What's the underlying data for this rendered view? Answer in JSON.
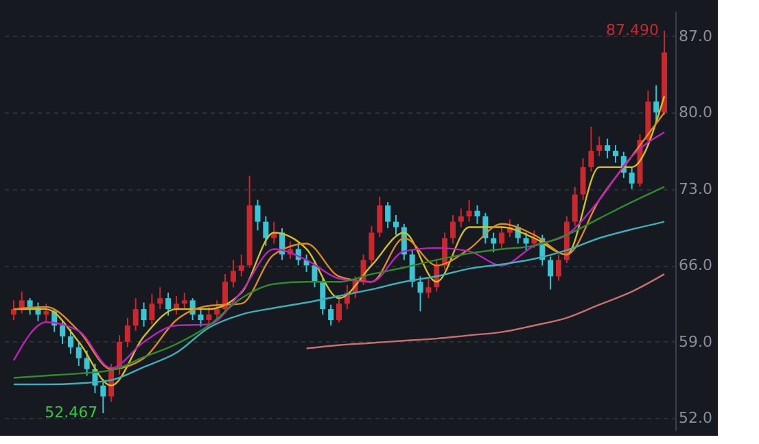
{
  "chart_data": {
    "type": "candlestick",
    "categories": [
      null,
      null,
      null,
      null,
      null,
      null,
      null,
      null,
      null,
      null,
      null,
      null,
      null,
      null,
      null,
      null,
      null,
      null,
      null,
      null,
      null,
      null,
      null,
      null,
      null,
      null,
      null,
      null,
      null,
      null,
      null,
      null,
      null,
      null,
      null,
      null,
      null,
      null,
      null,
      null,
      null,
      null,
      null,
      null,
      null,
      null,
      null,
      null,
      null,
      null,
      null,
      null,
      null,
      null,
      null,
      null,
      null,
      null,
      null,
      null,
      null,
      null,
      null,
      null,
      null,
      null,
      null,
      null,
      null,
      null,
      null,
      null,
      null,
      null,
      null,
      null,
      null,
      null,
      null,
      null,
      null
    ],
    "ohlc": [
      [
        61.5,
        62.8,
        61.0,
        62.0
      ],
      [
        62.0,
        63.6,
        61.6,
        62.8
      ],
      [
        62.8,
        63.0,
        61.5,
        62.2
      ],
      [
        62.2,
        62.6,
        60.9,
        61.5
      ],
      [
        61.5,
        62.5,
        60.8,
        61.8
      ],
      [
        61.8,
        62.0,
        59.9,
        60.5
      ],
      [
        60.5,
        61.0,
        58.8,
        59.5
      ],
      [
        59.5,
        60.2,
        57.9,
        58.5
      ],
      [
        58.5,
        59.0,
        56.8,
        57.5
      ],
      [
        57.5,
        58.2,
        55.9,
        56.5
      ],
      [
        56.5,
        57.0,
        54.3,
        55.0
      ],
      [
        55.0,
        55.6,
        52.467,
        54.0
      ],
      [
        54.0,
        57.0,
        53.5,
        56.5
      ],
      [
        56.5,
        59.6,
        56.0,
        59.0
      ],
      [
        59.0,
        61.2,
        58.5,
        60.5
      ],
      [
        60.5,
        63.0,
        60.0,
        62.0
      ],
      [
        62.0,
        62.6,
        60.4,
        61.0
      ],
      [
        61.0,
        63.4,
        60.6,
        62.5
      ],
      [
        62.5,
        64.0,
        62.0,
        63.0
      ],
      [
        63.0,
        63.5,
        61.4,
        62.0
      ],
      [
        62.0,
        63.2,
        61.5,
        62.5
      ],
      [
        62.5,
        63.5,
        62.0,
        62.8
      ],
      [
        62.8,
        63.0,
        61.0,
        61.5
      ],
      [
        61.5,
        62.0,
        60.4,
        61.0
      ],
      [
        61.0,
        62.2,
        60.6,
        61.5
      ],
      [
        61.5,
        62.8,
        61.0,
        62.0
      ],
      [
        62.0,
        65.2,
        61.6,
        64.5
      ],
      [
        64.5,
        66.5,
        64.0,
        65.5
      ],
      [
        65.5,
        67.0,
        65.0,
        66.0
      ],
      [
        66.0,
        74.2,
        65.8,
        71.5
      ],
      [
        71.5,
        72.0,
        69.2,
        70.0
      ],
      [
        70.0,
        70.5,
        67.8,
        68.5
      ],
      [
        68.5,
        70.0,
        68.0,
        69.0
      ],
      [
        69.0,
        69.4,
        66.5,
        67.0
      ],
      [
        67.0,
        68.2,
        66.6,
        67.5
      ],
      [
        67.5,
        68.0,
        66.0,
        66.5
      ],
      [
        66.5,
        67.0,
        65.4,
        66.0
      ],
      [
        66.0,
        66.4,
        64.0,
        64.5
      ],
      [
        64.5,
        64.8,
        61.5,
        62.0
      ],
      [
        62.0,
        62.4,
        60.5,
        61.0
      ],
      [
        61.0,
        63.0,
        60.8,
        62.5
      ],
      [
        62.5,
        64.2,
        62.0,
        63.5
      ],
      [
        63.5,
        65.0,
        63.0,
        64.5
      ],
      [
        64.5,
        67.0,
        64.2,
        66.5
      ],
      [
        66.5,
        69.6,
        66.0,
        69.0
      ],
      [
        69.0,
        72.3,
        68.6,
        71.5
      ],
      [
        71.5,
        71.8,
        69.4,
        70.0
      ],
      [
        70.0,
        70.6,
        68.8,
        69.5
      ],
      [
        69.5,
        69.8,
        66.5,
        67.0
      ],
      [
        67.0,
        67.4,
        64.0,
        64.5
      ],
      [
        64.5,
        65.0,
        61.8,
        63.5
      ],
      [
        63.5,
        64.8,
        63.0,
        64.0
      ],
      [
        64.0,
        66.6,
        63.6,
        66.0
      ],
      [
        66.0,
        69.0,
        65.6,
        68.5
      ],
      [
        68.5,
        70.6,
        68.0,
        70.0
      ],
      [
        70.0,
        71.2,
        69.5,
        70.5
      ],
      [
        70.5,
        72.0,
        70.0,
        71.0
      ],
      [
        71.0,
        71.5,
        69.8,
        70.5
      ],
      [
        70.5,
        70.8,
        68.0,
        68.5
      ],
      [
        68.5,
        69.0,
        67.2,
        68.0
      ],
      [
        68.0,
        69.6,
        67.6,
        69.0
      ],
      [
        69.0,
        70.2,
        68.6,
        69.5
      ],
      [
        69.5,
        69.8,
        68.0,
        68.5
      ],
      [
        68.5,
        69.0,
        67.4,
        68.0
      ],
      [
        68.0,
        69.2,
        67.6,
        68.5
      ],
      [
        68.5,
        68.8,
        66.0,
        66.5
      ],
      [
        66.5,
        66.8,
        63.8,
        65.0
      ],
      [
        65.0,
        67.0,
        64.6,
        66.5
      ],
      [
        66.5,
        70.5,
        66.2,
        70.0
      ],
      [
        70.0,
        73.2,
        69.6,
        72.5
      ],
      [
        72.5,
        75.8,
        72.0,
        75.0
      ],
      [
        75.0,
        78.7,
        74.6,
        76.5
      ],
      [
        76.5,
        77.8,
        76.0,
        77.0
      ],
      [
        77.0,
        77.6,
        75.8,
        76.5
      ],
      [
        76.5,
        77.0,
        75.4,
        76.0
      ],
      [
        76.0,
        76.4,
        74.0,
        74.5
      ],
      [
        74.5,
        75.0,
        73.0,
        73.5
      ],
      [
        73.5,
        78.0,
        73.2,
        77.5
      ],
      [
        77.5,
        82.0,
        77.0,
        81.0
      ],
      [
        81.0,
        82.5,
        79.0,
        80.0
      ],
      [
        80.0,
        87.49,
        79.8,
        85.5
      ]
    ],
    "colors": [
      "#c8282e",
      "#c8282e",
      "#38c6d6",
      "#38c6d6",
      "#c8282e",
      "#38c6d6",
      "#38c6d6",
      "#38c6d6",
      "#38c6d6",
      "#38c6d6",
      "#38c6d6",
      "#38c6d6",
      "#c8282e",
      "#c8282e",
      "#c8282e",
      "#c8282e",
      "#38c6d6",
      "#c8282e",
      "#c8282e",
      "#38c6d6",
      "#c8282e",
      "#c8282e",
      "#38c6d6",
      "#38c6d6",
      "#c8282e",
      "#c8282e",
      "#c8282e",
      "#c8282e",
      "#c8282e",
      "#c8282e",
      "#38c6d6",
      "#38c6d6",
      "#c8282e",
      "#38c6d6",
      "#c8282e",
      "#38c6d6",
      "#38c6d6",
      "#38c6d6",
      "#38c6d6",
      "#38c6d6",
      "#c8282e",
      "#c8282e",
      "#c8282e",
      "#c8282e",
      "#c8282e",
      "#c8282e",
      "#38c6d6",
      "#38c6d6",
      "#38c6d6",
      "#38c6d6",
      "#38c6d6",
      "#c8282e",
      "#c8282e",
      "#c8282e",
      "#c8282e",
      "#c8282e",
      "#c8282e",
      "#38c6d6",
      "#38c6d6",
      "#38c6d6",
      "#c8282e",
      "#c8282e",
      "#38c6d6",
      "#38c6d6",
      "#c8282e",
      "#38c6d6",
      "#38c6d6",
      "#c8282e",
      "#c8282e",
      "#c8282e",
      "#c8282e",
      "#c8282e",
      "#c8282e",
      "#38c6d6",
      "#38c6d6",
      "#38c6d6",
      "#38c6d6",
      "#c8282e",
      "#c8282e",
      "#38c6d6",
      "#c8282e"
    ],
    "series": [
      {
        "type": "line",
        "color": "#d4c21a",
        "values": [
          62.0,
          null,
          null,
          null,
          62.0,
          null,
          null,
          null,
          59.0,
          null,
          null,
          null,
          55.0,
          null,
          null,
          null,
          59.5,
          null,
          null,
          null,
          62.0,
          null,
          null,
          null,
          62.0,
          null,
          null,
          null,
          63.5,
          null,
          null,
          null,
          69.0,
          null,
          null,
          null,
          67.5,
          null,
          null,
          null,
          63.0,
          null,
          null,
          null,
          66.0,
          null,
          null,
          null,
          69.0,
          null,
          null,
          null,
          64.5,
          null,
          null,
          null,
          69.5,
          null,
          null,
          null,
          69.5,
          null,
          null,
          null,
          68.5,
          null,
          null,
          null,
          67.0,
          null,
          null,
          null,
          75.0,
          null,
          null,
          null,
          75.0,
          null,
          null,
          null,
          81.5
        ]
      },
      {
        "type": "line",
        "color": "#e08a1e",
        "values": [
          62.0,
          null,
          null,
          null,
          62.2,
          null,
          null,
          null,
          60.0,
          null,
          null,
          null,
          56.5,
          null,
          null,
          null,
          57.5,
          null,
          null,
          null,
          61.0,
          null,
          null,
          null,
          62.3,
          null,
          null,
          null,
          62.5,
          null,
          null,
          null,
          67.0,
          null,
          null,
          null,
          68.0,
          null,
          null,
          null,
          65.0,
          null,
          null,
          null,
          64.5,
          null,
          null,
          null,
          68.5,
          null,
          null,
          null,
          66.0,
          null,
          null,
          null,
          67.5,
          null,
          null,
          null,
          69.8,
          null,
          null,
          null,
          68.8,
          null,
          null,
          null,
          67.0,
          null,
          null,
          null,
          72.0,
          null,
          null,
          null,
          76.0,
          null,
          null,
          null,
          80.0
        ]
      },
      {
        "type": "line",
        "color": "#c020c0",
        "values": [
          57.3,
          null,
          null,
          null,
          60.8,
          null,
          null,
          null,
          60.0,
          null,
          null,
          null,
          56.6,
          null,
          null,
          null,
          59.0,
          null,
          null,
          null,
          60.5,
          null,
          null,
          null,
          60.6,
          null,
          null,
          null,
          63.6,
          null,
          null,
          null,
          67.5,
          null,
          null,
          null,
          66.5,
          null,
          null,
          null,
          64.8,
          null,
          null,
          null,
          64.5,
          null,
          null,
          null,
          67.3,
          null,
          null,
          null,
          67.6,
          null,
          null,
          null,
          67.3,
          null,
          null,
          null,
          66.0,
          null,
          null,
          null,
          67.8,
          null,
          null,
          null,
          68.8,
          null,
          null,
          null,
          72.0,
          null,
          null,
          null,
          76.0,
          null,
          null,
          null,
          78.2
        ]
      },
      {
        "type": "line",
        "color": "#2e8b2e",
        "values": [
          55.7,
          null,
          null,
          null,
          55.9,
          null,
          null,
          null,
          56.1,
          null,
          null,
          null,
          56.4,
          null,
          null,
          null,
          57.6,
          null,
          null,
          null,
          58.8,
          null,
          null,
          null,
          60.5,
          null,
          null,
          null,
          63.0,
          null,
          null,
          null,
          64.3,
          null,
          null,
          null,
          64.5,
          null,
          null,
          null,
          64.5,
          null,
          null,
          null,
          65.2,
          null,
          null,
          null,
          65.8,
          null,
          null,
          null,
          66.5,
          null,
          null,
          null,
          67.1,
          null,
          null,
          null,
          67.5,
          null,
          null,
          null,
          67.8,
          null,
          null,
          null,
          68.8,
          null,
          null,
          null,
          70.3,
          null,
          null,
          null,
          71.8,
          null,
          null,
          null,
          73.2
        ]
      },
      {
        "type": "line",
        "color": "#3bb0b8",
        "values": [
          55.1,
          null,
          null,
          null,
          55.1,
          null,
          null,
          null,
          55.2,
          null,
          null,
          null,
          55.5,
          null,
          null,
          null,
          56.7,
          null,
          null,
          null,
          58.0,
          null,
          null,
          null,
          60.3,
          null,
          null,
          null,
          61.5,
          null,
          null,
          null,
          62.1,
          null,
          null,
          null,
          62.6,
          null,
          null,
          null,
          63.2,
          null,
          null,
          null,
          63.8,
          null,
          null,
          null,
          64.5,
          null,
          null,
          null,
          65.0,
          null,
          null,
          null,
          65.7,
          null,
          null,
          null,
          66.1,
          null,
          null,
          null,
          66.6,
          null,
          null,
          null,
          67.4,
          null,
          null,
          null,
          68.5,
          null,
          null,
          null,
          69.3,
          null,
          null,
          null,
          70.0
        ]
      },
      {
        "type": "line",
        "color": "#c87070",
        "values": [
          null,
          null,
          null,
          null,
          null,
          null,
          null,
          null,
          null,
          null,
          null,
          null,
          null,
          null,
          null,
          null,
          null,
          null,
          null,
          null,
          null,
          null,
          null,
          null,
          null,
          null,
          null,
          null,
          null,
          null,
          null,
          null,
          null,
          null,
          null,
          null,
          58.4,
          null,
          null,
          null,
          58.7,
          null,
          null,
          null,
          58.9,
          null,
          null,
          null,
          59.1,
          null,
          null,
          null,
          59.3,
          null,
          null,
          null,
          59.6,
          null,
          null,
          null,
          59.9,
          null,
          null,
          null,
          60.5,
          null,
          null,
          null,
          61.2,
          null,
          null,
          null,
          62.4,
          null,
          null,
          null,
          63.6,
          null,
          null,
          null,
          65.2
        ]
      }
    ],
    "ylim": [
      50.9,
      89.3
    ],
    "yticks": [
      {
        "value": 52,
        "label": "52.0"
      },
      {
        "value": 59,
        "label": "59.0"
      },
      {
        "value": 66,
        "label": "66.0"
      },
      {
        "value": 73,
        "label": "73.0"
      },
      {
        "value": 80,
        "label": "80.0"
      },
      {
        "value": 87,
        "label": "87.0"
      }
    ],
    "grid": "y",
    "tick_labels": "y",
    "annotations": [
      "87.490",
      "52.467"
    ]
  }
}
